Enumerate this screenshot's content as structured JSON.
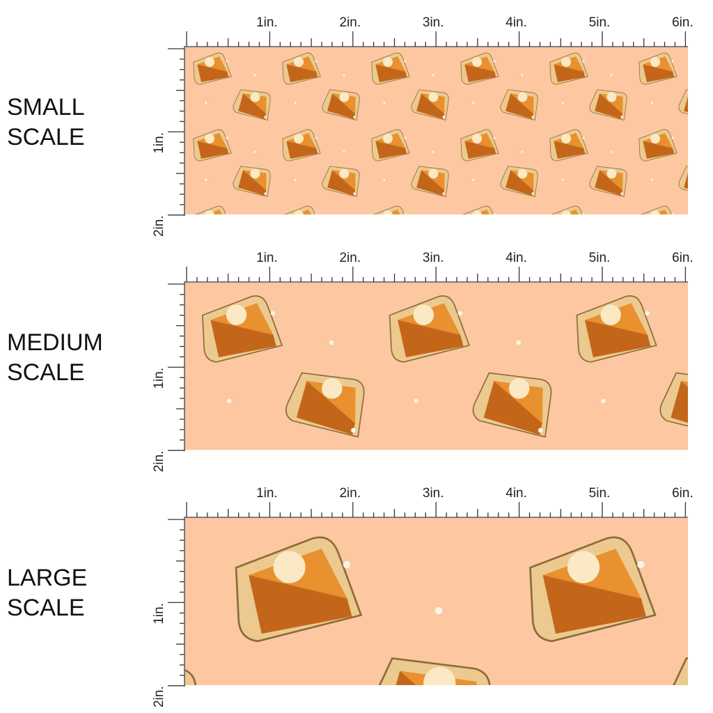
{
  "panels": [
    {
      "label": [
        "SMALL",
        "SCALE"
      ],
      "ruler_x": [
        "1in.",
        "2in.",
        "3in.",
        "4in.",
        "5in.",
        "6in."
      ],
      "ruler_y": [
        "1in.",
        "2in."
      ]
    },
    {
      "label": [
        "MEDIUM",
        "SCALE"
      ],
      "ruler_x": [
        "1in.",
        "2in.",
        "3in.",
        "4in.",
        "5in.",
        "6in."
      ],
      "ruler_y": [
        "1in.",
        "2in."
      ]
    },
    {
      "label": [
        "LARGE",
        "SCALE"
      ],
      "ruler_x": [
        "1in.",
        "2in.",
        "3in.",
        "4in.",
        "5in.",
        "6in."
      ],
      "ruler_y": [
        "1in.",
        "2in."
      ]
    }
  ]
}
